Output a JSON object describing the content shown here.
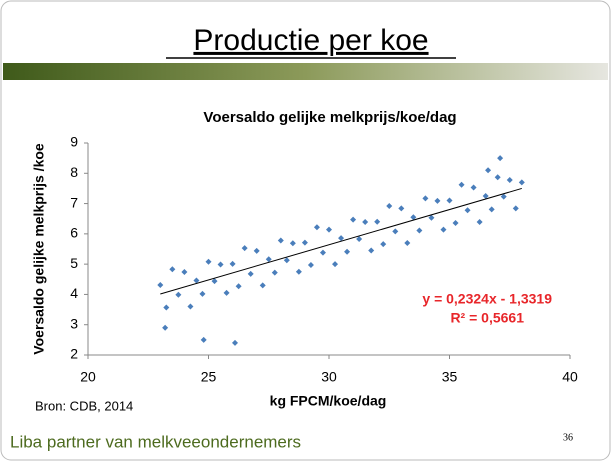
{
  "slide": {
    "title": "Productie per koe",
    "source": "Bron: CDB, 2014",
    "footer": "Liba partner van melkveeondernemers",
    "page_number": "36"
  },
  "chart_data": {
    "type": "scatter",
    "title": "Voersaldo gelijke melkprijs/koe/dag",
    "x_label": "kg FPCM/koe/dag",
    "y_label": "Voersaldo gelijke melkprijs /koe",
    "xlim": [
      20,
      40
    ],
    "xticks": [
      20,
      25,
      30,
      35,
      40
    ],
    "ylim": [
      2,
      9
    ],
    "yticks": [
      2,
      3,
      4,
      5,
      6,
      7,
      8,
      9
    ],
    "grid": false,
    "series": [
      {
        "color": "#4a7ebb",
        "x": [
          23,
          23.25,
          23.5,
          23.75,
          24,
          24.25,
          24.5,
          24.75,
          25,
          25.25,
          25.5,
          25.75,
          26,
          26.25,
          26.5,
          26.75,
          27,
          27.25,
          27.5,
          27.75,
          28,
          28.25,
          28.5,
          28.75,
          29,
          29.25,
          29.5,
          29.75,
          30,
          30.25,
          30.5,
          30.75,
          31,
          31.25,
          31.5,
          31.75,
          32,
          32.25,
          32.5,
          32.75,
          33,
          33.25,
          33.5,
          33.75,
          34,
          34.25,
          34.5,
          34.75,
          35,
          35.25,
          35.5,
          35.75,
          36,
          36.25,
          36.5,
          36.75,
          37,
          37.25,
          37.5,
          37.75,
          24.8,
          26.1,
          23.2,
          37.1,
          36.6,
          38
        ],
        "values": [
          4.31,
          3.57,
          4.83,
          3.99,
          4.74,
          3.6,
          4.46,
          4.02,
          5.08,
          4.44,
          4.99,
          4.05,
          5.01,
          4.27,
          5.53,
          4.68,
          5.44,
          4.3,
          5.16,
          4.72,
          5.78,
          5.13,
          5.69,
          4.75,
          5.71,
          4.97,
          6.22,
          5.38,
          6.14,
          5.0,
          5.86,
          5.41,
          6.47,
          5.83,
          6.39,
          5.45,
          6.4,
          5.66,
          6.92,
          6.08,
          6.84,
          5.7,
          6.55,
          6.11,
          7.17,
          6.53,
          7.09,
          6.14,
          7.1,
          6.36,
          7.62,
          6.78,
          7.53,
          6.39,
          7.25,
          6.81,
          7.87,
          7.23,
          7.78,
          6.84,
          2.5,
          2.4,
          2.9,
          8.5,
          8.1,
          7.7
        ]
      }
    ],
    "trendline": {
      "slope": 0.2324,
      "intercept": -1.3319,
      "xrange": [
        23,
        38
      ],
      "color": "#000000"
    },
    "annotations": [
      "y = 0,2324x - 1,3319",
      "R² = 0,5661"
    ]
  }
}
